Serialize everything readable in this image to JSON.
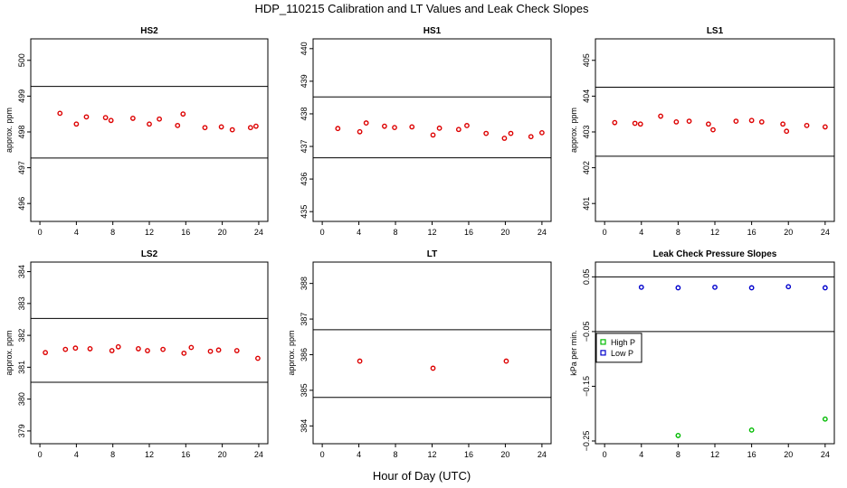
{
  "figure": {
    "title": "HDP_110215  Calibration and LT Values and Leak Check Slopes",
    "xlabel": "Hour of Day (UTC)"
  },
  "chart_data": [
    {
      "type": "scatter",
      "title": "HS2",
      "xlabel": "",
      "ylabel": "approx. ppm",
      "xlim": [
        -1,
        25
      ],
      "ylim": [
        495.5,
        500.6
      ],
      "xticks": [
        0,
        4,
        8,
        12,
        16,
        20,
        24
      ],
      "yticks": [
        496,
        497,
        498,
        499,
        500
      ],
      "hlines": [
        499.27,
        497.27
      ],
      "series": [
        {
          "name": "",
          "color": "#dd0000",
          "x": [
            2.2,
            4.0,
            5.1,
            7.2,
            7.8,
            10.2,
            12.0,
            13.1,
            15.1,
            15.7,
            18.1,
            19.9,
            21.1,
            23.1,
            23.7
          ],
          "y": [
            498.52,
            498.22,
            498.42,
            498.4,
            498.32,
            498.38,
            498.22,
            498.36,
            498.18,
            498.5,
            498.12,
            498.14,
            498.06,
            498.12,
            498.16
          ]
        }
      ]
    },
    {
      "type": "scatter",
      "title": "HS1",
      "xlabel": "",
      "ylabel": "",
      "xlim": [
        -1,
        25
      ],
      "ylim": [
        434.7,
        440.3
      ],
      "xticks": [
        0,
        4,
        8,
        12,
        16,
        20,
        24
      ],
      "yticks": [
        435,
        436,
        437,
        438,
        439,
        440
      ],
      "hlines": [
        438.52,
        436.65
      ],
      "series": [
        {
          "name": "",
          "color": "#dd0000",
          "x": [
            1.7,
            4.1,
            4.8,
            6.8,
            7.9,
            9.8,
            12.1,
            12.8,
            14.9,
            15.8,
            17.9,
            19.9,
            20.6,
            22.8,
            24.0
          ],
          "y": [
            437.55,
            437.45,
            437.72,
            437.62,
            437.58,
            437.6,
            437.35,
            437.56,
            437.52,
            437.64,
            437.4,
            437.25,
            437.4,
            437.3,
            437.42
          ]
        }
      ]
    },
    {
      "type": "scatter",
      "title": "LS1",
      "xlabel": "",
      "ylabel": "approx. ppm",
      "xlim": [
        -1,
        25
      ],
      "ylim": [
        400.5,
        405.6
      ],
      "xticks": [
        0,
        4,
        8,
        12,
        16,
        20,
        24
      ],
      "yticks": [
        401,
        402,
        403,
        404,
        405
      ],
      "hlines": [
        404.25,
        402.32
      ],
      "series": [
        {
          "name": "",
          "color": "#dd0000",
          "x": [
            1.1,
            3.3,
            3.9,
            6.1,
            7.8,
            9.2,
            11.3,
            11.8,
            14.3,
            16.0,
            17.1,
            19.4,
            19.8,
            22.0,
            24.0
          ],
          "y": [
            403.26,
            403.24,
            403.22,
            403.44,
            403.28,
            403.3,
            403.22,
            403.06,
            403.3,
            403.32,
            403.28,
            403.22,
            403.02,
            403.18,
            403.14
          ]
        }
      ]
    },
    {
      "type": "scatter",
      "title": "LS2",
      "xlabel": "",
      "ylabel": "approx. ppm",
      "xlim": [
        -1,
        25
      ],
      "ylim": [
        378.6,
        384.3
      ],
      "xticks": [
        0,
        4,
        8,
        12,
        16,
        20,
        24
      ],
      "yticks": [
        379,
        380,
        381,
        382,
        383,
        384
      ],
      "hlines": [
        382.53,
        380.53
      ],
      "series": [
        {
          "name": "",
          "color": "#dd0000",
          "x": [
            0.6,
            2.8,
            3.9,
            5.5,
            7.9,
            8.6,
            10.8,
            11.8,
            13.5,
            15.8,
            16.6,
            18.7,
            19.6,
            21.6,
            23.9
          ],
          "y": [
            381.46,
            381.56,
            381.6,
            381.58,
            381.52,
            381.64,
            381.58,
            381.52,
            381.56,
            381.44,
            381.62,
            381.5,
            381.54,
            381.52,
            381.28
          ]
        }
      ]
    },
    {
      "type": "scatter",
      "title": "LT",
      "xlabel": "",
      "ylabel": "approx. ppm",
      "xlim": [
        -1,
        25
      ],
      "ylim": [
        383.5,
        388.6
      ],
      "xticks": [
        0,
        4,
        8,
        12,
        16,
        20,
        24
      ],
      "yticks": [
        384,
        385,
        386,
        387,
        388
      ],
      "hlines": [
        386.7,
        384.8
      ],
      "series": [
        {
          "name": "",
          "color": "#dd0000",
          "x": [
            4.1,
            12.1,
            20.1
          ],
          "y": [
            385.82,
            385.62,
            385.82
          ]
        }
      ]
    },
    {
      "type": "scatter",
      "title": "Leak Check Pressure Slopes",
      "xlabel": "",
      "ylabel": "kPa per min.",
      "xlim": [
        -1,
        25
      ],
      "ylim": [
        -0.255,
        0.077
      ],
      "xticks": [
        0,
        4,
        8,
        12,
        16,
        20,
        24
      ],
      "yticks": [
        0.05,
        -0.05,
        -0.15,
        -0.25
      ],
      "hlines": [
        0.05,
        -0.05
      ],
      "legend": {
        "position": "center-left"
      },
      "series": [
        {
          "name": "High P",
          "color": "#00bb00",
          "x": [
            8.0,
            16.0,
            24.0
          ],
          "y": [
            -0.24,
            -0.23,
            -0.21
          ]
        },
        {
          "name": "Low P",
          "color": "#0000cc",
          "x": [
            4.0,
            8.0,
            12.0,
            16.0,
            20.0,
            24.0
          ],
          "y": [
            0.031,
            0.03,
            0.031,
            0.03,
            0.032,
            0.03
          ]
        }
      ]
    }
  ]
}
